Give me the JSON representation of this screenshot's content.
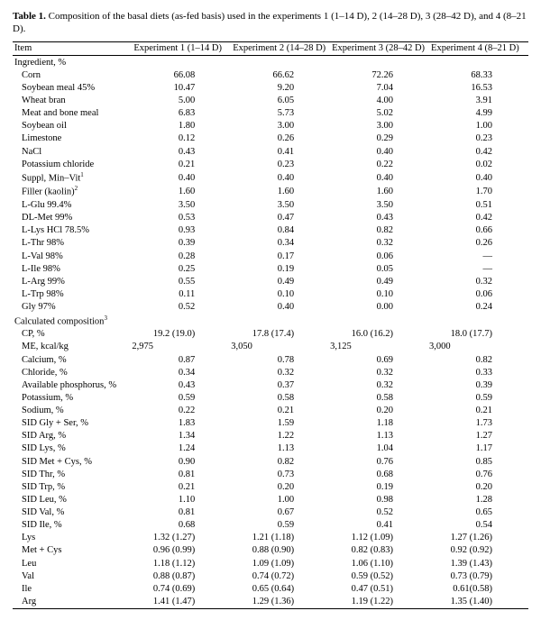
{
  "caption_prefix": "Table 1.",
  "caption_text": " Composition of the basal diets (as-fed basis) used in the experiments 1 (1–14 D), 2 (14–28 D), 3 (28–42 D), and 4 (8–21 D).",
  "columns": {
    "item": "Item",
    "e1": "Experiment 1 (1–14 D)",
    "e2": "Experiment 2 (14–28 D)",
    "e3": "Experiment 3 (28–42 D)",
    "e4": "Experiment 4 (8–21 D)"
  },
  "section1": "Ingredient, %",
  "rows1": [
    {
      "n": "Corn",
      "v": [
        "66.08",
        "66.62",
        "72.26",
        "68.33"
      ]
    },
    {
      "n": "Soybean meal 45%",
      "v": [
        "10.47",
        "9.20",
        "7.04",
        "16.53"
      ]
    },
    {
      "n": "Wheat bran",
      "v": [
        "5.00",
        "6.05",
        "4.00",
        "3.91"
      ]
    },
    {
      "n": "Meat and bone meal",
      "v": [
        "6.83",
        "5.73",
        "5.02",
        "4.99"
      ]
    },
    {
      "n": "Soybean oil",
      "v": [
        "1.80",
        "3.00",
        "3.00",
        "1.00"
      ]
    },
    {
      "n": "Limestone",
      "v": [
        "0.12",
        "0.26",
        "0.29",
        "0.23"
      ]
    },
    {
      "n": "NaCl",
      "v": [
        "0.43",
        "0.41",
        "0.40",
        "0.42"
      ]
    },
    {
      "n": "Potassium chloride",
      "v": [
        "0.21",
        "0.23",
        "0.22",
        "0.02"
      ]
    },
    {
      "n": "Suppl, Min–Vit",
      "sup": "1",
      "v": [
        "0.40",
        "0.40",
        "0.40",
        "0.40"
      ]
    },
    {
      "n": "Filler (kaolin)",
      "sup": "2",
      "v": [
        "1.60",
        "1.60",
        "1.60",
        "1.70"
      ]
    },
    {
      "n": "L-Glu 99.4%",
      "v": [
        "3.50",
        "3.50",
        "3.50",
        "0.51"
      ]
    },
    {
      "n": "DL-Met 99%",
      "v": [
        "0.53",
        "0.47",
        "0.43",
        "0.42"
      ]
    },
    {
      "n": "L-Lys HCl 78.5%",
      "v": [
        "0.93",
        "0.84",
        "0.82",
        "0.66"
      ]
    },
    {
      "n": "L-Thr 98%",
      "v": [
        "0.39",
        "0.34",
        "0.32",
        "0.26"
      ]
    },
    {
      "n": "L-Val 98%",
      "v": [
        "0.28",
        "0.17",
        "0.06",
        "—"
      ]
    },
    {
      "n": "L-Ile 98%",
      "v": [
        "0.25",
        "0.19",
        "0.05",
        "—"
      ]
    },
    {
      "n": "L-Arg 99%",
      "v": [
        "0.55",
        "0.49",
        "0.49",
        "0.32"
      ]
    },
    {
      "n": "L-Trp 98%",
      "v": [
        "0.11",
        "0.10",
        "0.10",
        "0.06"
      ]
    },
    {
      "n": "Gly 97%",
      "v": [
        "0.52",
        "0.40",
        "0.00",
        "0.24"
      ]
    }
  ],
  "section2": "Calculated composition",
  "section2_sup": "3",
  "rows2": [
    {
      "n": "CP, %",
      "v": [
        "19.2 (19.0)",
        "17.8 (17.4)",
        "16.0 (16.2)",
        "18.0 (17.7)"
      ]
    },
    {
      "n": "ME, kcal/kg",
      "v": [
        "2,975",
        "3,050",
        "3,125",
        "3,000"
      ],
      "wide": true
    },
    {
      "n": "Calcium, %",
      "v": [
        "0.87",
        "0.78",
        "0.69",
        "0.82"
      ]
    },
    {
      "n": "Chloride, %",
      "v": [
        "0.34",
        "0.32",
        "0.32",
        "0.33"
      ]
    },
    {
      "n": "Available phosphorus, %",
      "v": [
        "0.43",
        "0.37",
        "0.32",
        "0.39"
      ]
    },
    {
      "n": "Potassium, %",
      "v": [
        "0.59",
        "0.58",
        "0.58",
        "0.59"
      ]
    },
    {
      "n": "Sodium, %",
      "v": [
        "0.22",
        "0.21",
        "0.20",
        "0.21"
      ]
    },
    {
      "n": "SID Gly + Ser, %",
      "v": [
        "1.83",
        "1.59",
        "1.18",
        "1.73"
      ]
    },
    {
      "n": "SID Arg, %",
      "v": [
        "1.34",
        "1.22",
        "1.13",
        "1.27"
      ]
    },
    {
      "n": "SID Lys, %",
      "v": [
        "1.24",
        "1.13",
        "1.04",
        "1.17"
      ]
    },
    {
      "n": "SID Met + Cys, %",
      "v": [
        "0.90",
        "0.82",
        "0.76",
        "0.85"
      ]
    },
    {
      "n": "SID Thr, %",
      "v": [
        "0.81",
        "0.73",
        "0.68",
        "0.76"
      ]
    },
    {
      "n": "SID Trp, %",
      "v": [
        "0.21",
        "0.20",
        "0.19",
        "0.20"
      ]
    },
    {
      "n": "SID Leu, %",
      "v": [
        "1.10",
        "1.00",
        "0.98",
        "1.28"
      ]
    },
    {
      "n": "SID Val, %",
      "v": [
        "0.81",
        "0.67",
        "0.52",
        "0.65"
      ]
    },
    {
      "n": "SID Ile, %",
      "v": [
        "0.68",
        "0.59",
        "0.41",
        "0.54"
      ]
    },
    {
      "n": "Lys",
      "v": [
        "1.32 (1.27)",
        "1.21 (1.18)",
        "1.12 (1.09)",
        "1.27 (1.26)"
      ]
    },
    {
      "n": "Met + Cys",
      "v": [
        "0.96 (0.99)",
        "0.88 (0.90)",
        "0.82 (0.83)",
        "0.92 (0.92)"
      ]
    },
    {
      "n": "Leu",
      "v": [
        "1.18 (1.12)",
        "1.09 (1.09)",
        "1.06 (1.10)",
        "1.39 (1.43)"
      ]
    },
    {
      "n": "Val",
      "v": [
        "0.88 (0.87)",
        "0.74 (0.72)",
        "0.59 (0.52)",
        "0.73 (0.79)"
      ]
    },
    {
      "n": "Ile",
      "v": [
        "0.74 (0.69)",
        "0.65 (0.64)",
        "0.47 (0.51)",
        "0.61(0.58)"
      ]
    },
    {
      "n": "Arg",
      "v": [
        "1.41 (1.47)",
        "1.29 (1.36)",
        "1.19 (1.22)",
        "1.35 (1.40)"
      ]
    }
  ]
}
